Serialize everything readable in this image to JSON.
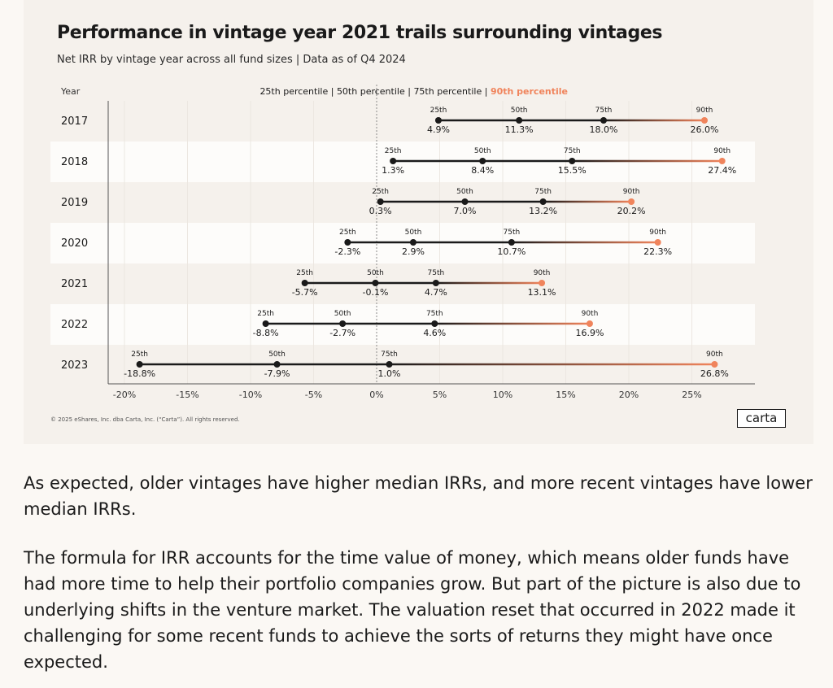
{
  "card": {
    "copyright": "© 2025 eShares, Inc. dba Carta, Inc. (“Carta”). All rights reserved.",
    "logo": "carta"
  },
  "chart_data": {
    "type": "dumbbell",
    "title": "Performance in vintage year 2021 trails surrounding vintages",
    "subtitle": "Net IRR by vintage year across all fund sizes | Data as of Q4 2024",
    "year_header": "Year",
    "legend": [
      "25th percentile",
      "50th percentile",
      "75th percentile",
      "90th percentile"
    ],
    "legend_separator": " | ",
    "percentile_names": [
      "25th",
      "50th",
      "75th",
      "90th"
    ],
    "xlim": [
      -22,
      30
    ],
    "x_ticks": [
      -20,
      -15,
      -10,
      -5,
      0,
      5,
      10,
      15,
      20,
      25
    ],
    "x_tick_labels": [
      "-20%",
      "-15%",
      "-10%",
      "-5%",
      "0%",
      "5%",
      "10%",
      "15%",
      "20%",
      "25%"
    ],
    "colors": {
      "dark": "#1a1a1a",
      "accent": "#f0845c",
      "band": "#ffffff",
      "zero_line": "#8a8a8a"
    },
    "rows": [
      {
        "year": "2017",
        "values": [
          4.9,
          11.3,
          18.0,
          26.0
        ],
        "labels": [
          "4.9%",
          "11.3%",
          "18.0%",
          "26.0%"
        ]
      },
      {
        "year": "2018",
        "values": [
          1.3,
          8.4,
          15.5,
          27.4
        ],
        "labels": [
          "1.3%",
          "8.4%",
          "15.5%",
          "27.4%"
        ]
      },
      {
        "year": "2019",
        "values": [
          0.3,
          7.0,
          13.2,
          20.2
        ],
        "labels": [
          "0.3%",
          "7.0%",
          "13.2%",
          "20.2%"
        ]
      },
      {
        "year": "2020",
        "values": [
          -2.3,
          2.9,
          10.7,
          22.3
        ],
        "labels": [
          "-2.3%",
          "2.9%",
          "10.7%",
          "22.3%"
        ]
      },
      {
        "year": "2021",
        "values": [
          -5.7,
          -0.1,
          4.7,
          13.1
        ],
        "labels": [
          "-5.7%",
          "-0.1%",
          "4.7%",
          "13.1%"
        ]
      },
      {
        "year": "2022",
        "values": [
          -8.8,
          -2.7,
          4.6,
          16.9
        ],
        "labels": [
          "-8.8%",
          "-2.7%",
          "4.6%",
          "16.9%"
        ]
      },
      {
        "year": "2023",
        "values": [
          -18.8,
          -7.9,
          1.0,
          26.8
        ],
        "labels": [
          "-18.8%",
          "-7.9%",
          "1.0%",
          "26.8%"
        ]
      }
    ]
  },
  "article": {
    "paragraph_1": "As expected, older vintages have higher median IRRs, and more recent vintages have lower median IRRs.",
    "paragraph_2": "The formula for IRR accounts for the time value of money, which means older funds have had more time to help their portfolio companies grow. But part of the picture is also due to underlying shifts in the venture market. The valuation reset that occurred in 2022 made it challenging for some recent funds to achieve the sorts of returns they might have once expected."
  }
}
